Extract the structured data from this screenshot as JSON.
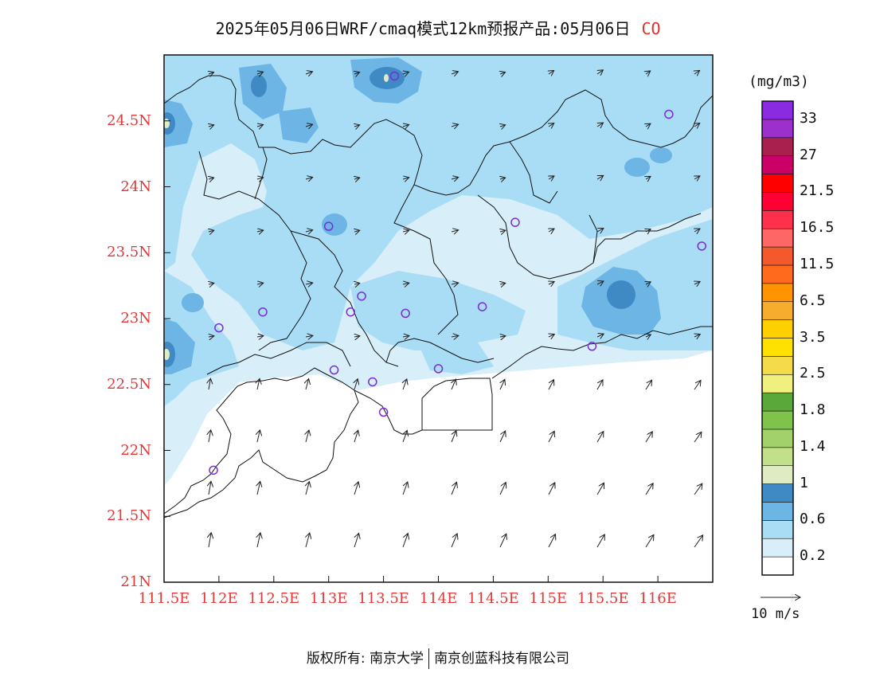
{
  "title": {
    "main": "2025年05月06日WRF/cmaq模式12km预报产品:05月06日",
    "species": "CO"
  },
  "map": {
    "lon_range": [
      111.5,
      116.5
    ],
    "lat_range": [
      21.0,
      25.0
    ],
    "lat_ticks": [
      "24.5N",
      "24N",
      "23.5N",
      "23N",
      "22.5N",
      "22N",
      "21.5N",
      "21N"
    ],
    "lon_ticks": [
      "111.5E",
      "112E",
      "112.5E",
      "113E",
      "113.5E",
      "114E",
      "114.5E",
      "115E",
      "115.5E",
      "116E"
    ],
    "stations": [
      {
        "lon": 113.6,
        "lat": 24.84
      },
      {
        "lon": 116.1,
        "lat": 24.55
      },
      {
        "lon": 113.0,
        "lat": 23.7
      },
      {
        "lon": 114.7,
        "lat": 23.73
      },
      {
        "lon": 116.4,
        "lat": 23.55
      },
      {
        "lon": 112.4,
        "lat": 23.05
      },
      {
        "lon": 112.0,
        "lat": 22.93
      },
      {
        "lon": 113.3,
        "lat": 23.17
      },
      {
        "lon": 113.2,
        "lat": 23.05
      },
      {
        "lon": 113.7,
        "lat": 23.04
      },
      {
        "lon": 114.4,
        "lat": 23.09
      },
      {
        "lon": 115.4,
        "lat": 22.79
      },
      {
        "lon": 113.05,
        "lat": 22.61
      },
      {
        "lon": 113.4,
        "lat": 22.52
      },
      {
        "lon": 114.0,
        "lat": 22.62
      },
      {
        "lon": 113.5,
        "lat": 22.29
      },
      {
        "lon": 111.95,
        "lat": 21.85
      }
    ]
  },
  "colorbar": {
    "unit": "(mg/m3)",
    "colors": [
      "#ffffff",
      "#d8eef8",
      "#a9ddf5",
      "#6cb5e4",
      "#3f8ac4",
      "#dfecc3",
      "#c2df8a",
      "#a2d16c",
      "#7fc34a",
      "#5aa83a",
      "#f0f07e",
      "#f3db4a",
      "#ffe100",
      "#ffd000",
      "#f6ad2e",
      "#ff9400",
      "#ff6a1c",
      "#f25a2e",
      "#ff6666",
      "#ff304a",
      "#ff0033",
      "#ff0000",
      "#cc0066",
      "#a9204e",
      "#9b30cc",
      "#8a2be2"
    ],
    "labels": [
      "0.2",
      "0.6",
      "1",
      "1.4",
      "1.8",
      "2.5",
      "3.5",
      "6.5",
      "11.5",
      "16.5",
      "21.5",
      "27",
      "33"
    ]
  },
  "wind_reference": {
    "label": "10 m/s"
  },
  "footer": {
    "left": "版权所有: 南京大学",
    "right": "南京创蓝科技有限公司"
  }
}
